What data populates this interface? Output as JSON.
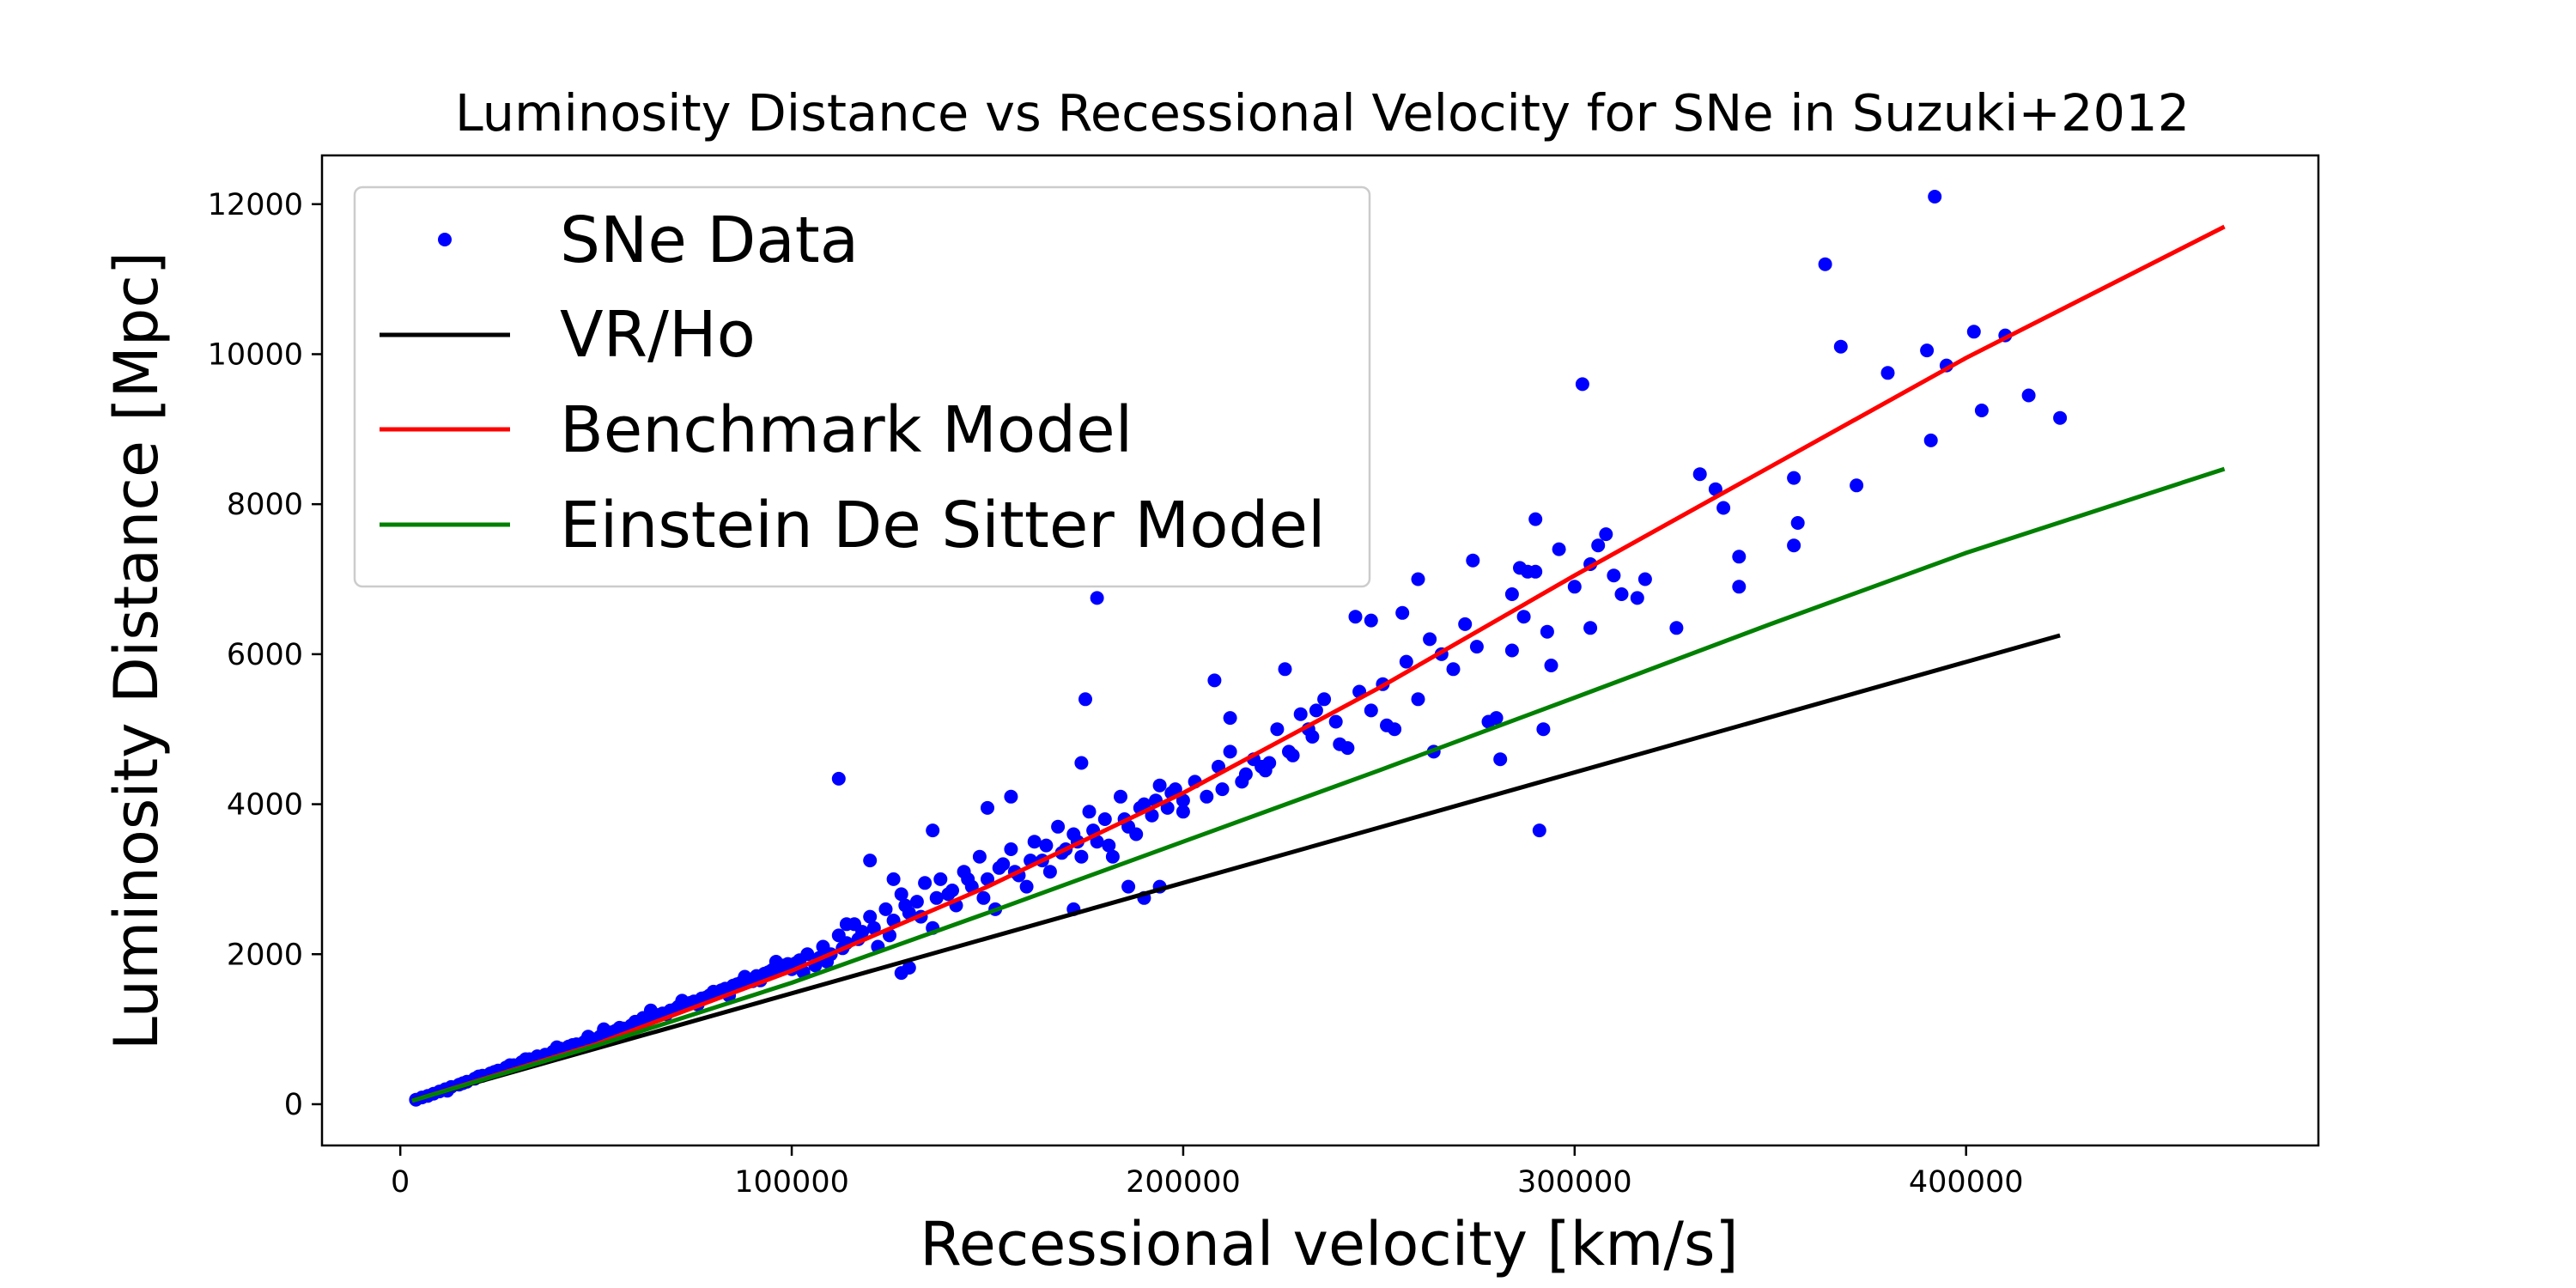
{
  "chart_data": {
    "type": "scatter",
    "title": "Luminosity Distance vs Recessional Velocity for SNe in Suzuki+2012",
    "xlabel": "Recessional velocity [km/s]",
    "ylabel": "Luminosity Distance [Mpc]",
    "xlim": [
      -20000,
      490000
    ],
    "ylim": [
      -550,
      12650
    ],
    "xticks": [
      0,
      100000,
      200000,
      300000,
      400000
    ],
    "yticks": [
      0,
      2000,
      4000,
      6000,
      8000,
      10000,
      12000
    ],
    "grid": false,
    "legend_position": "top-left",
    "colors": {
      "scatter": "#0000ff",
      "vr_ho": "#000000",
      "benchmark": "#ff0000",
      "eds": "#008000"
    },
    "series": [
      {
        "name": "SNe Data",
        "kind": "scatter",
        "points": [
          [
            4000,
            60
          ],
          [
            5500,
            90
          ],
          [
            7000,
            110
          ],
          [
            8500,
            140
          ],
          [
            10000,
            170
          ],
          [
            11500,
            200
          ],
          [
            13000,
            230
          ],
          [
            15000,
            260
          ],
          [
            17000,
            300
          ],
          [
            19000,
            340
          ],
          [
            21000,
            380
          ],
          [
            23000,
            410
          ],
          [
            25000,
            450
          ],
          [
            27000,
            490
          ],
          [
            29000,
            520
          ],
          [
            31000,
            560
          ],
          [
            33000,
            600
          ],
          [
            35000,
            640
          ],
          [
            37000,
            660
          ],
          [
            39000,
            700
          ],
          [
            41000,
            740
          ],
          [
            43000,
            770
          ],
          [
            45000,
            800
          ],
          [
            47000,
            830
          ],
          [
            49000,
            870
          ],
          [
            51000,
            900
          ],
          [
            53000,
            940
          ],
          [
            55000,
            980
          ],
          [
            57000,
            1010
          ],
          [
            59000,
            1050
          ],
          [
            61000,
            1090
          ],
          [
            63000,
            1130
          ],
          [
            65000,
            1170
          ],
          [
            67000,
            1210
          ],
          [
            69000,
            1250
          ],
          [
            71000,
            1300
          ],
          [
            73000,
            1330
          ],
          [
            75000,
            1370
          ],
          [
            77000,
            1410
          ],
          [
            79000,
            1450
          ],
          [
            81000,
            1490
          ],
          [
            83000,
            1540
          ],
          [
            85000,
            1580
          ],
          [
            87000,
            1620
          ],
          [
            89000,
            1660
          ],
          [
            91000,
            1710
          ],
          [
            93000,
            1740
          ],
          [
            95000,
            1790
          ],
          [
            97000,
            1830
          ],
          [
            99000,
            1870
          ],
          [
            12000,
            180
          ],
          [
            16000,
            280
          ],
          [
            20000,
            370
          ],
          [
            24000,
            430
          ],
          [
            28000,
            520
          ],
          [
            32000,
            600
          ],
          [
            36000,
            620
          ],
          [
            40000,
            760
          ],
          [
            44000,
            790
          ],
          [
            48000,
            900
          ],
          [
            52000,
            1000
          ],
          [
            56000,
            1020
          ],
          [
            60000,
            1100
          ],
          [
            64000,
            1250
          ],
          [
            68000,
            1200
          ],
          [
            72000,
            1380
          ],
          [
            76000,
            1330
          ],
          [
            80000,
            1500
          ],
          [
            84000,
            1450
          ],
          [
            88000,
            1700
          ],
          [
            92000,
            1650
          ],
          [
            96000,
            1900
          ],
          [
            100000,
            1800
          ],
          [
            102000,
            1920
          ],
          [
            104000,
            2000
          ],
          [
            106000,
            1850
          ],
          [
            108000,
            2100
          ],
          [
            110000,
            2000
          ],
          [
            112000,
            2250
          ],
          [
            114000,
            2150
          ],
          [
            116000,
            2400
          ],
          [
            118000,
            2300
          ],
          [
            120000,
            2500
          ],
          [
            122000,
            2100
          ],
          [
            124000,
            2600
          ],
          [
            126000,
            2450
          ],
          [
            128000,
            2800
          ],
          [
            130000,
            2550
          ],
          [
            132000,
            2700
          ],
          [
            134000,
            2950
          ],
          [
            136000,
            2350
          ],
          [
            138000,
            3000
          ],
          [
            140000,
            2800
          ],
          [
            142000,
            2650
          ],
          [
            144000,
            3100
          ],
          [
            146000,
            2900
          ],
          [
            148000,
            3300
          ],
          [
            150000,
            3000
          ],
          [
            152000,
            2600
          ],
          [
            154000,
            3200
          ],
          [
            156000,
            3400
          ],
          [
            158000,
            3050
          ],
          [
            160000,
            2900
          ],
          [
            162000,
            3500
          ],
          [
            164000,
            3250
          ],
          [
            166000,
            3100
          ],
          [
            168000,
            3700
          ],
          [
            170000,
            3400
          ],
          [
            172000,
            3600
          ],
          [
            174000,
            3300
          ],
          [
            176000,
            3900
          ],
          [
            178000,
            3500
          ],
          [
            180000,
            3800
          ],
          [
            182000,
            3300
          ],
          [
            184000,
            4100
          ],
          [
            186000,
            3700
          ],
          [
            188000,
            3600
          ],
          [
            190000,
            4000
          ],
          [
            192000,
            3850
          ],
          [
            194000,
            4250
          ],
          [
            196000,
            3950
          ],
          [
            198000,
            4200
          ],
          [
            200000,
            3900
          ],
          [
            203000,
            4300
          ],
          [
            206000,
            4100
          ],
          [
            209000,
            4500
          ],
          [
            212000,
            4700
          ],
          [
            215000,
            4300
          ],
          [
            218000,
            4600
          ],
          [
            221000,
            4450
          ],
          [
            224000,
            5000
          ],
          [
            227000,
            4700
          ],
          [
            230000,
            5200
          ],
          [
            233000,
            4900
          ],
          [
            236000,
            5400
          ],
          [
            239000,
            5100
          ],
          [
            242000,
            4750
          ],
          [
            245000,
            5500
          ],
          [
            248000,
            5250
          ],
          [
            251000,
            5600
          ],
          [
            254000,
            5000
          ],
          [
            257000,
            5900
          ],
          [
            260000,
            5400
          ],
          [
            263000,
            6200
          ],
          [
            266000,
            6000
          ],
          [
            269000,
            5800
          ],
          [
            272000,
            6400
          ],
          [
            275000,
            6100
          ],
          [
            278000,
            5100
          ],
          [
            281000,
            4600
          ],
          [
            284000,
            6800
          ],
          [
            287000,
            6500
          ],
          [
            290000,
            7100
          ],
          [
            293000,
            6300
          ],
          [
            296000,
            7400
          ],
          [
            300000,
            6900
          ],
          [
            304000,
            7200
          ],
          [
            308000,
            7600
          ],
          [
            312000,
            6800
          ],
          [
            318000,
            7000
          ],
          [
            45000,
            780
          ],
          [
            50000,
            840
          ],
          [
            54000,
            960
          ],
          [
            58000,
            1000
          ],
          [
            62000,
            1150
          ],
          [
            66000,
            1190
          ],
          [
            70000,
            1260
          ],
          [
            74000,
            1350
          ],
          [
            78000,
            1420
          ],
          [
            82000,
            1520
          ],
          [
            86000,
            1600
          ],
          [
            90000,
            1640
          ],
          [
            94000,
            1760
          ],
          [
            98000,
            1850
          ],
          [
            101000,
            1880
          ],
          [
            103000,
            1760
          ],
          [
            107000,
            1950
          ],
          [
            109000,
            1900
          ],
          [
            113000,
            2080
          ],
          [
            117000,
            2200
          ],
          [
            121000,
            2350
          ],
          [
            125000,
            2250
          ],
          [
            129000,
            2650
          ],
          [
            133000,
            2500
          ],
          [
            137000,
            2750
          ],
          [
            141000,
            2850
          ],
          [
            145000,
            3000
          ],
          [
            149000,
            2750
          ],
          [
            153000,
            3150
          ],
          [
            157000,
            3100
          ],
          [
            161000,
            3250
          ],
          [
            165000,
            3450
          ],
          [
            169000,
            3350
          ],
          [
            173000,
            3500
          ],
          [
            177000,
            3650
          ],
          [
            181000,
            3450
          ],
          [
            185000,
            3800
          ],
          [
            189000,
            3950
          ],
          [
            193000,
            4050
          ],
          [
            197000,
            4150
          ],
          [
            112000,
            4340
          ],
          [
            114000,
            2400
          ],
          [
            120000,
            3250
          ],
          [
            126000,
            3000
          ],
          [
            128000,
            1750
          ],
          [
            130000,
            1820
          ],
          [
            136000,
            3650
          ],
          [
            150000,
            3950
          ],
          [
            156000,
            4100
          ],
          [
            172000,
            2600
          ],
          [
            174000,
            4550
          ],
          [
            175000,
            5400
          ],
          [
            178000,
            6750
          ],
          [
            186000,
            2900
          ],
          [
            190000,
            2750
          ],
          [
            194000,
            2900
          ],
          [
            208000,
            5650
          ],
          [
            212000,
            5150
          ],
          [
            220000,
            4500
          ],
          [
            226000,
            5800
          ],
          [
            232000,
            5000
          ],
          [
            240000,
            4800
          ],
          [
            244000,
            6500
          ],
          [
            248000,
            6450
          ],
          [
            252000,
            5050
          ],
          [
            256000,
            6550
          ],
          [
            260000,
            7000
          ],
          [
            264000,
            4700
          ],
          [
            274000,
            7250
          ],
          [
            280000,
            5150
          ],
          [
            284000,
            6050
          ],
          [
            286000,
            7150
          ],
          [
            288000,
            7100
          ],
          [
            290000,
            7800
          ],
          [
            291000,
            3650
          ],
          [
            292000,
            5000
          ],
          [
            294000,
            5850
          ],
          [
            302000,
            9600
          ],
          [
            304000,
            6350
          ],
          [
            306000,
            7450
          ],
          [
            310000,
            7050
          ],
          [
            316000,
            6750
          ],
          [
            326000,
            6350
          ],
          [
            332000,
            8400
          ],
          [
            336000,
            8200
          ],
          [
            338000,
            7950
          ],
          [
            342000,
            6900
          ],
          [
            342000,
            7300
          ],
          [
            356000,
            8350
          ],
          [
            356000,
            7450
          ],
          [
            357000,
            7750
          ],
          [
            364000,
            11200
          ],
          [
            368000,
            10100
          ],
          [
            372000,
            8250
          ],
          [
            380000,
            9750
          ],
          [
            390000,
            10050
          ],
          [
            391000,
            8850
          ],
          [
            392000,
            12100
          ],
          [
            395000,
            9850
          ],
          [
            402000,
            10300
          ],
          [
            404000,
            9250
          ],
          [
            410000,
            10250
          ],
          [
            416000,
            9450
          ],
          [
            424000,
            9150
          ],
          [
            200000,
            4050
          ],
          [
            210000,
            4200
          ],
          [
            216000,
            4400
          ],
          [
            222000,
            4550
          ],
          [
            228000,
            4650
          ],
          [
            234000,
            5250
          ]
        ]
      },
      {
        "name": "VR/Ho",
        "kind": "line",
        "points": [
          [
            3000,
            50
          ],
          [
            424000,
            6250
          ]
        ]
      },
      {
        "name": "Benchmark Model",
        "kind": "line",
        "points": [
          [
            3000,
            45
          ],
          [
            50000,
            800
          ],
          [
            100000,
            1780
          ],
          [
            150000,
            2900
          ],
          [
            200000,
            4150
          ],
          [
            250000,
            5550
          ],
          [
            300000,
            7050
          ],
          [
            350000,
            8500
          ],
          [
            400000,
            9950
          ],
          [
            466000,
            11700
          ]
        ]
      },
      {
        "name": "Einstein De Sitter Model",
        "kind": "line",
        "points": [
          [
            3000,
            45
          ],
          [
            50000,
            780
          ],
          [
            100000,
            1620
          ],
          [
            150000,
            2550
          ],
          [
            200000,
            3500
          ],
          [
            250000,
            4450
          ],
          [
            300000,
            5420
          ],
          [
            350000,
            6400
          ],
          [
            400000,
            7350
          ],
          [
            466000,
            8470
          ]
        ]
      }
    ]
  }
}
